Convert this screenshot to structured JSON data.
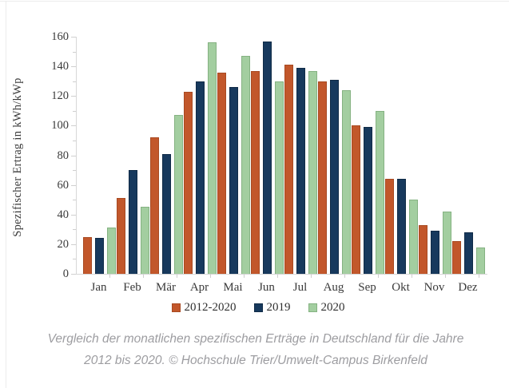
{
  "chart_data": {
    "type": "bar",
    "title": "",
    "categories": [
      "Jan",
      "Feb",
      "Mär",
      "Apr",
      "Mai",
      "Jun",
      "Jul",
      "Aug",
      "Sep",
      "Okt",
      "Nov",
      "Dez"
    ],
    "series": [
      {
        "name": "2012-2020",
        "color": "#C2572B",
        "border_color": "#A84A22",
        "values": [
          25,
          51,
          92,
          123,
          136,
          137,
          141,
          130,
          100,
          64,
          33,
          22
        ]
      },
      {
        "name": "2019",
        "color": "#17395D",
        "border_color": "#102B47",
        "values": [
          24,
          70,
          81,
          130,
          126,
          157,
          139,
          131,
          99,
          64,
          29,
          28
        ]
      },
      {
        "name": "2020",
        "color": "#A3CEA0",
        "border_color": "#85B282",
        "values": [
          31,
          45,
          107,
          156,
          147,
          130,
          137,
          124,
          110,
          50,
          42,
          18
        ]
      }
    ],
    "xlabel": "",
    "ylabel": "Spezifischer Ertrag in kWh/kWp",
    "ylim": [
      0,
      160
    ],
    "ytick_step": 20,
    "ytick_minor_step": 10,
    "grid": "off",
    "legend_position": "bottom"
  },
  "caption": {
    "line1": "Vergleich der monatlichen spezifischen Erträge in Deutschland für die Jahre",
    "line2": "2012 bis 2020. © Hochschule Trier/Umwelt-Campus Birkenfeld"
  },
  "colors": {
    "background": "#FFFFFF",
    "axis": "#D7D7D7",
    "tick": "#CFCFCF",
    "tick_label": "#3A3A3A",
    "caption": "#9D9DA1",
    "frame_line": "#ECECEC"
  }
}
